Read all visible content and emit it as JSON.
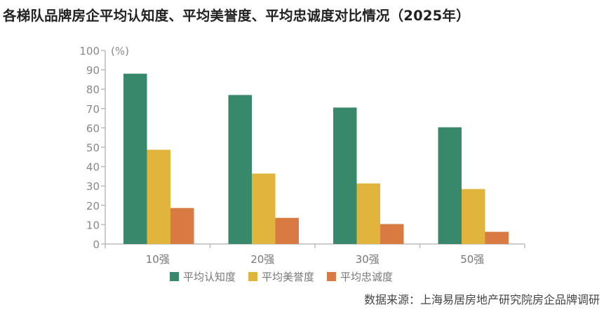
{
  "title": "各梯队品牌房企平均认知度、平均美誉度、平均忠诚度对比情况（2025年）",
  "source": "数据来源：上海易居房地产研究院房企品牌调研",
  "chart_data": {
    "type": "bar",
    "title": "各梯队品牌房企平均认知度、平均美誉度、平均忠诚度对比情况（2025年）",
    "ylabel": "(%)",
    "xlabel": "",
    "ylim": [
      0,
      100
    ],
    "yticks": [
      0,
      10,
      20,
      30,
      40,
      50,
      60,
      70,
      80,
      90,
      100
    ],
    "grid": false,
    "legend": "bottom",
    "categories": [
      "10强",
      "20强",
      "30强",
      "50强"
    ],
    "series": [
      {
        "name": "平均认知度",
        "color": "#38896b",
        "values": [
          88.0,
          77.0,
          70.5,
          60.3
        ]
      },
      {
        "name": "平均美誉度",
        "color": "#e1b43c",
        "values": [
          48.7,
          36.4,
          31.3,
          28.4
        ]
      },
      {
        "name": "平均忠诚度",
        "color": "#d97a42",
        "values": [
          18.6,
          13.5,
          10.3,
          6.3
        ]
      }
    ]
  }
}
